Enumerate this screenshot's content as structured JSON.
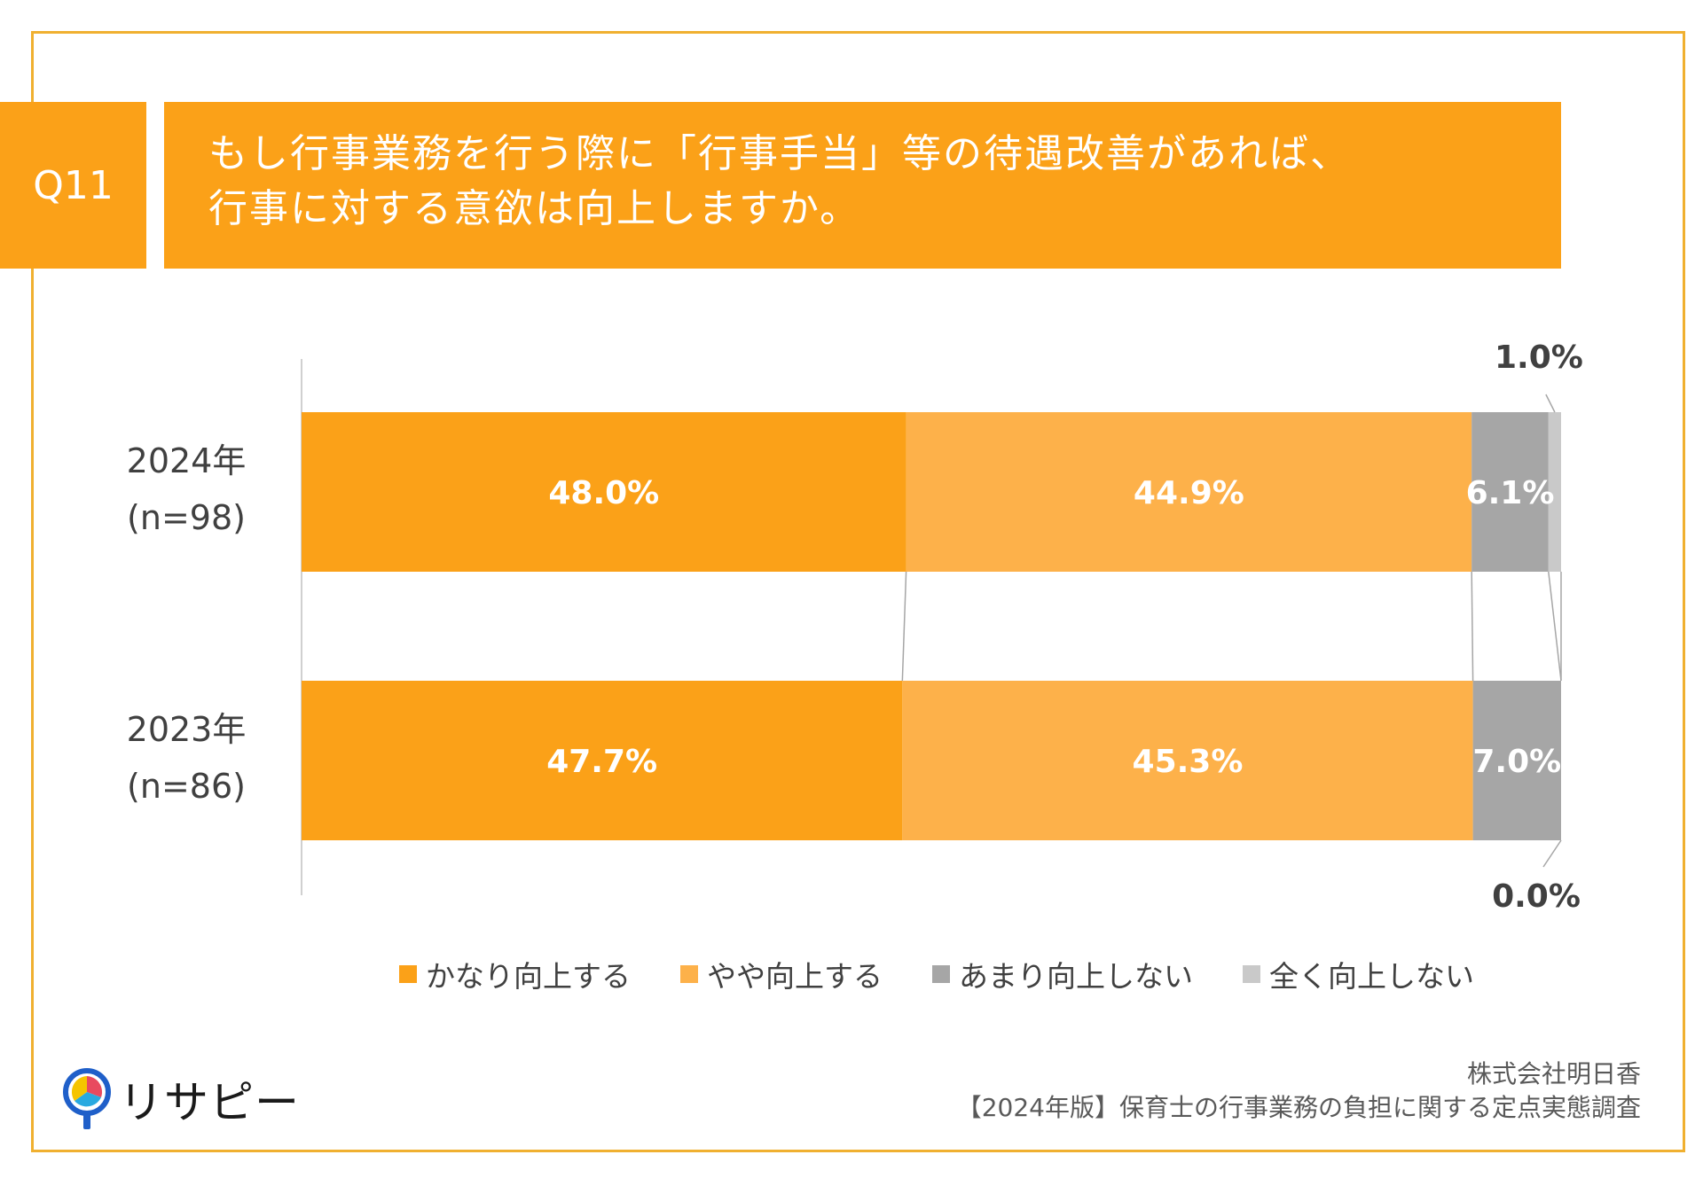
{
  "header": {
    "q_label": "Q11",
    "title_line1": "もし行事業務を行う際に「行事手当」等の待遇改善があれば、",
    "title_line2": "行事に対する意欲は向上しますか。"
  },
  "chart_data": {
    "type": "bar",
    "orientation": "horizontal",
    "stacked": "percent",
    "categories": [
      [
        "2024年",
        "(n=98)"
      ],
      [
        "2023年",
        "(n=86)"
      ]
    ],
    "series": [
      {
        "name": "かなり向上する",
        "values": [
          48.0,
          47.7
        ],
        "labels": [
          "48.0%",
          "47.7%"
        ],
        "color": "#fba118"
      },
      {
        "name": "やや向上する",
        "values": [
          44.9,
          45.3
        ],
        "labels": [
          "44.9%",
          "45.3%"
        ],
        "color": "#fdb14a"
      },
      {
        "name": "あまり向上しない",
        "values": [
          6.1,
          7.0
        ],
        "labels": [
          "6.1%",
          "7.0%"
        ],
        "color": "#a6a6a6"
      },
      {
        "name": "全く向上しない",
        "values": [
          1.0,
          0.0
        ],
        "labels": [
          "1.0%",
          "0.0%"
        ],
        "color": "#c9c9c9"
      }
    ],
    "xlim": [
      0,
      100
    ],
    "legend": "bottom",
    "grid": false
  },
  "footer": {
    "logo_text": "リサピー",
    "source_line1": "株式会社明日香",
    "source_line2": "【2024年版】保育士の行事業務の負担に関する定点実態調査"
  }
}
